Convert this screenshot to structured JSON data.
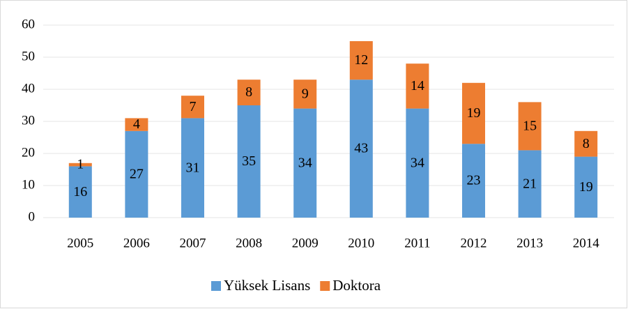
{
  "chart_data": {
    "type": "bar",
    "stacked": true,
    "categories": [
      "2005",
      "2006",
      "2007",
      "2008",
      "2009",
      "2010",
      "2011",
      "2012",
      "2013",
      "2014"
    ],
    "series": [
      {
        "name": "Yüksek Lisans",
        "color": "#5b9bd5",
        "values": [
          16,
          27,
          31,
          35,
          34,
          43,
          34,
          23,
          21,
          19
        ]
      },
      {
        "name": "Doktora",
        "color": "#ed7d31",
        "values": [
          1,
          4,
          7,
          8,
          9,
          12,
          14,
          19,
          15,
          8
        ]
      }
    ],
    "ylim": [
      0,
      60
    ],
    "yticks": [
      0,
      10,
      20,
      30,
      40,
      50,
      60
    ],
    "grid": true,
    "legend": "bottom"
  }
}
